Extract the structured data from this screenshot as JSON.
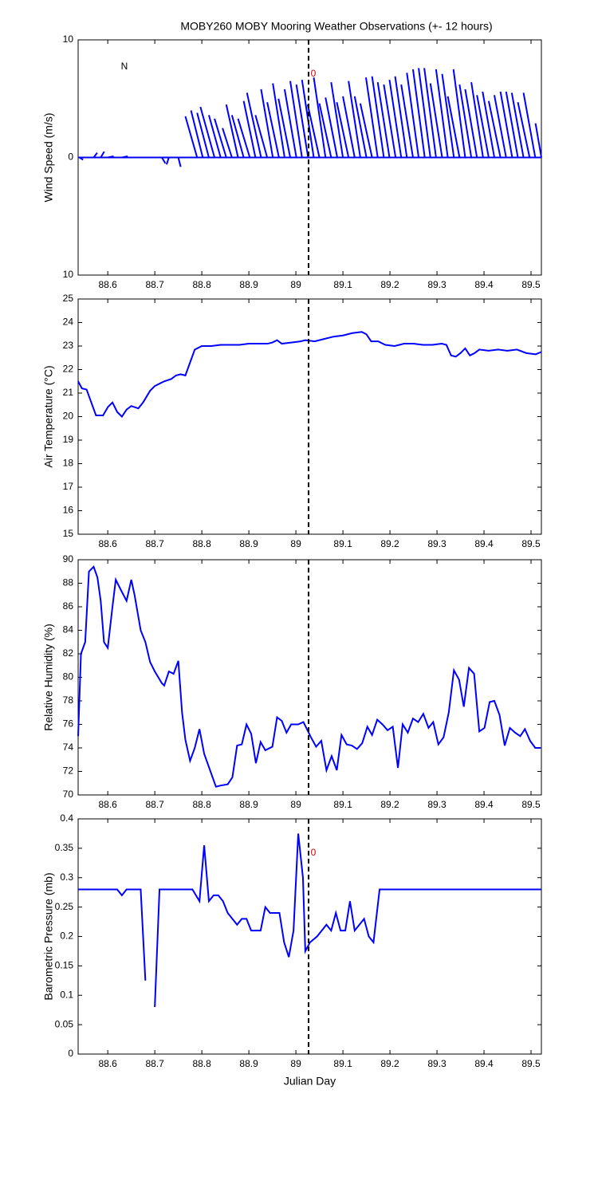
{
  "chart_data": [
    {
      "type": "stick",
      "title": "MOBY260 MOBY Mooring Weather Observations (+- 12 hours)",
      "ylabel": "Wind Speed (m/s)",
      "xlim": [
        88.537,
        89.522
      ],
      "xticks": [
        88.6,
        88.7,
        88.8,
        88.9,
        89,
        89.1,
        89.2,
        89.3,
        89.4,
        89.5
      ],
      "ylim": [
        -10,
        10
      ],
      "yticks": [
        {
          "value": -10,
          "label": "10"
        },
        0,
        10
      ],
      "color": "#0000ff",
      "marker_x": 89.027,
      "annotations": [
        {
          "text": "N",
          "color": "#000000"
        },
        {
          "text": "0",
          "color": "#cc0000"
        }
      ],
      "x": [
        88.54,
        88.555,
        88.57,
        88.585,
        88.6,
        88.63,
        88.66,
        88.69,
        88.715,
        88.73,
        88.75,
        88.77,
        88.79,
        88.802,
        88.815,
        88.827,
        88.84,
        88.852,
        88.864,
        88.877,
        88.889,
        88.902,
        88.914,
        88.926,
        88.939,
        88.951,
        88.964,
        88.976,
        88.988,
        89.001,
        89.013,
        89.026,
        89.038,
        89.05,
        89.063,
        89.075,
        89.088,
        89.1,
        89.112,
        89.125,
        89.137,
        89.15,
        89.162,
        89.174,
        89.187,
        89.199,
        89.212,
        89.224,
        89.236,
        89.249,
        89.261,
        89.274,
        89.286,
        89.298,
        89.311,
        89.323,
        89.336,
        89.348,
        89.36,
        89.373,
        89.385,
        89.398,
        89.41,
        89.422,
        89.435,
        89.447,
        89.46,
        89.472,
        89.484,
        89.497,
        89.509,
        89.522
      ],
      "u": [
        0.3,
        0.1,
        0.3,
        0.3,
        0.5,
        0.5,
        0.5,
        0.5,
        0.3,
        -0.2,
        0.2,
        1,
        -1,
        -1,
        -1,
        -1.2,
        -1,
        -1,
        -0.8,
        -1,
        -1,
        -1,
        -1,
        -1.2,
        -1,
        -1,
        -1,
        -1,
        -1,
        -1,
        -1,
        -1,
        -1,
        -1,
        -1,
        -1,
        -1,
        -1,
        -1,
        -1,
        -1,
        -1,
        -1,
        -1,
        -1,
        -1,
        -1,
        -1,
        -1,
        -1,
        -1,
        -1,
        -1,
        -1,
        -1,
        -1,
        -1,
        -1,
        -1,
        -1,
        -1,
        -1,
        -1,
        -1,
        -1,
        -1,
        -1,
        -1,
        -1,
        -1,
        -1,
        -0.5
      ],
      "v": [
        -0.2,
        0,
        0.4,
        0.5,
        0.1,
        0.1,
        0,
        0,
        -0.5,
        -0.6,
        -0.8,
        0,
        3.5,
        4,
        3.8,
        4.3,
        3.6,
        3.3,
        2.5,
        4.5,
        3.6,
        3.3,
        4.8,
        5.5,
        3.6,
        5.8,
        4.7,
        6.3,
        5,
        5.8,
        6.5,
        6.2,
        6.6,
        4.5,
        6.8,
        4.6,
        5.1,
        6.4,
        4.7,
        5.2,
        6.5,
        5.2,
        4.6,
        6.8,
        6.9,
        6.4,
        6.2,
        6.6,
        6.9,
        6.2,
        7.2,
        7.5,
        7.6,
        7.6,
        6.3,
        7.5,
        7.1,
        5.2,
        7.5,
        6.2,
        5.8,
        6.4,
        5.3,
        5.6,
        4.8,
        5.3,
        5.6,
        5.6,
        5.5,
        4.7,
        5.5,
        2.9
      ]
    },
    {
      "type": "line",
      "ylabel": "Air Temperature (°C)",
      "xlim": [
        88.537,
        89.522
      ],
      "xticks": [
        88.6,
        88.7,
        88.8,
        88.9,
        89,
        89.1,
        89.2,
        89.3,
        89.4,
        89.5
      ],
      "ylim": [
        15,
        25
      ],
      "yticks": [
        15,
        16,
        17,
        18,
        19,
        20,
        21,
        22,
        23,
        24,
        25
      ],
      "color": "#0000ff",
      "marker_x": 89.027,
      "x": [
        88.537,
        88.545,
        88.555,
        88.565,
        88.575,
        88.59,
        88.6,
        88.61,
        88.62,
        88.63,
        88.64,
        88.65,
        88.665,
        88.675,
        88.69,
        88.7,
        88.71,
        88.72,
        88.735,
        88.745,
        88.755,
        88.765,
        88.775,
        88.785,
        88.8,
        88.82,
        88.84,
        88.86,
        88.88,
        88.9,
        88.92,
        88.94,
        88.95,
        88.96,
        88.97,
        88.99,
        89.01,
        89.02,
        89.04,
        89.06,
        89.08,
        89.1,
        89.12,
        89.14,
        89.15,
        89.16,
        89.175,
        89.19,
        89.21,
        89.23,
        89.25,
        89.27,
        89.29,
        89.31,
        89.32,
        89.33,
        89.34,
        89.35,
        89.36,
        89.37,
        89.38,
        89.39,
        89.41,
        89.43,
        89.45,
        89.47,
        89.49,
        89.51,
        89.522
      ],
      "values": [
        21.5,
        21.2,
        21.15,
        20.6,
        20.05,
        20.05,
        20.4,
        20.6,
        20.2,
        20.0,
        20.3,
        20.45,
        20.35,
        20.6,
        21.1,
        21.3,
        21.4,
        21.5,
        21.6,
        21.75,
        21.8,
        21.75,
        22.3,
        22.85,
        23.0,
        23.0,
        23.05,
        23.05,
        23.05,
        23.1,
        23.1,
        23.1,
        23.15,
        23.25,
        23.1,
        23.15,
        23.2,
        23.25,
        23.2,
        23.3,
        23.4,
        23.45,
        23.55,
        23.6,
        23.5,
        23.2,
        23.2,
        23.05,
        23.0,
        23.1,
        23.1,
        23.05,
        23.05,
        23.1,
        23.05,
        22.6,
        22.55,
        22.7,
        22.9,
        22.6,
        22.7,
        22.85,
        22.8,
        22.85,
        22.8,
        22.85,
        22.7,
        22.65,
        22.75
      ]
    },
    {
      "type": "line",
      "ylabel": "Relative Humidity (%)",
      "xlim": [
        88.537,
        89.522
      ],
      "xticks": [
        88.6,
        88.7,
        88.8,
        88.9,
        89,
        89.1,
        89.2,
        89.3,
        89.4,
        89.5
      ],
      "ylim": [
        70,
        90
      ],
      "yticks": [
        70,
        72,
        74,
        76,
        78,
        80,
        82,
        84,
        86,
        88,
        90
      ],
      "color": "#0000ff",
      "marker_x": 89.027,
      "x": [
        88.537,
        88.543,
        88.552,
        88.56,
        88.57,
        88.578,
        88.585,
        88.592,
        88.6,
        88.61,
        88.617,
        88.627,
        88.64,
        88.65,
        88.657,
        88.67,
        88.68,
        88.69,
        88.7,
        88.715,
        88.72,
        88.73,
        88.74,
        88.75,
        88.758,
        88.765,
        88.775,
        88.785,
        88.795,
        88.805,
        88.83,
        88.84,
        88.855,
        88.865,
        88.875,
        88.885,
        88.895,
        88.905,
        88.915,
        88.925,
        88.935,
        88.95,
        88.96,
        88.97,
        88.98,
        88.99,
        89.005,
        89.016,
        89.032,
        89.043,
        89.054,
        89.065,
        89.076,
        89.087,
        89.097,
        89.108,
        89.119,
        89.13,
        89.141,
        89.152,
        89.162,
        89.173,
        89.184,
        89.195,
        89.206,
        89.217,
        89.227,
        89.238,
        89.249,
        89.26,
        89.271,
        89.282,
        89.292,
        89.303,
        89.314,
        89.325,
        89.336,
        89.347,
        89.357,
        89.368,
        89.379,
        89.39,
        89.401,
        89.412,
        89.422,
        89.433,
        89.444,
        89.455,
        89.466,
        89.477,
        89.487,
        89.498,
        89.509,
        89.52
      ],
      "values": [
        75,
        82,
        83,
        89,
        89.4,
        88.5,
        86.5,
        83,
        82.5,
        86,
        88.3,
        87.5,
        86.5,
        88.3,
        87,
        84,
        83,
        81.3,
        80.5,
        79.5,
        79.3,
        80.5,
        80.3,
        81.4,
        77,
        74.7,
        72.9,
        74,
        75.6,
        73.5,
        70.7,
        70.8,
        70.9,
        71.5,
        74.2,
        74.3,
        76,
        75.2,
        72.7,
        74.5,
        73.8,
        74.1,
        76.6,
        76.3,
        75.3,
        76,
        76,
        76.2,
        74.9,
        74.1,
        74.6,
        72.1,
        73.3,
        72.1,
        75.1,
        74.3,
        74.2,
        73.9,
        74.4,
        75.8,
        75.1,
        76.4,
        76,
        75.5,
        75.8,
        72.3,
        76,
        75.3,
        76.5,
        76.2,
        76.9,
        75.7,
        76.2,
        74.3,
        74.9,
        77,
        80.6,
        79.8,
        77.5,
        80.8,
        80.3,
        75.4,
        75.7,
        77.9,
        78,
        76.8,
        74.2,
        75.7,
        75.3,
        75,
        75.6,
        74.6,
        74,
        74
      ]
    },
    {
      "type": "line",
      "ylabel": "Barometric Pressure (mb)",
      "xlabel": "Julian Day",
      "xlim": [
        88.537,
        89.522
      ],
      "xticks": [
        88.6,
        88.7,
        88.8,
        88.9,
        89,
        89.1,
        89.2,
        89.3,
        89.4,
        89.5
      ],
      "ylim": [
        0,
        0.4
      ],
      "yticks": [
        0,
        0.05,
        0.1,
        0.15,
        0.2,
        0.25,
        0.3,
        0.35,
        0.4
      ],
      "color": "#0000ff",
      "marker_x": 89.027,
      "annotations": [
        {
          "text": "0",
          "color": "#cc0000"
        }
      ],
      "x": [
        88.537,
        88.62,
        88.63,
        88.64,
        88.67,
        88.68,
        88.69,
        88.7,
        88.71,
        88.78,
        88.795,
        88.805,
        88.815,
        88.825,
        88.835,
        88.845,
        88.855,
        88.875,
        88.885,
        88.895,
        88.905,
        88.925,
        88.935,
        88.945,
        88.965,
        88.975,
        88.985,
        88.995,
        89.005,
        89.015,
        89.02,
        89.03,
        89.045,
        89.065,
        89.075,
        89.085,
        89.095,
        89.105,
        89.115,
        89.125,
        89.145,
        89.155,
        89.165,
        89.178,
        89.522
      ],
      "values": [
        0.28,
        0.28,
        0.27,
        0.28,
        0.28,
        0.125,
        null,
        0.08,
        0.28,
        0.28,
        0.26,
        0.355,
        0.26,
        0.27,
        0.27,
        0.26,
        0.24,
        0.22,
        0.23,
        0.23,
        0.21,
        0.21,
        0.25,
        0.24,
        0.24,
        0.19,
        0.165,
        0.21,
        0.375,
        0.3,
        0.175,
        0.19,
        0.2,
        0.22,
        0.21,
        0.24,
        0.21,
        0.21,
        0.26,
        0.21,
        0.23,
        0.2,
        0.19,
        0.28,
        0.28
      ]
    }
  ]
}
